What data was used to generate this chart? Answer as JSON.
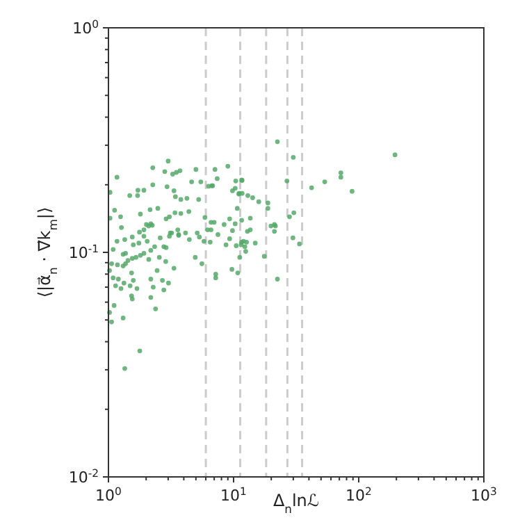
{
  "chart_data": {
    "type": "scatter",
    "xlabel": "Δ$_{n}$lnℒ",
    "ylabel": "⟨|α⃗$_{n}$ · ∇⃗k$_{m}$|⟩",
    "log": "xy",
    "marker": "circle",
    "grid": false,
    "xlim": [
      1,
      1000
    ],
    "ylim": [
      0.01,
      1
    ],
    "xticks": [
      {
        "value": 1,
        "label": "10$^{0}$"
      },
      {
        "value": 2,
        "label": null
      },
      {
        "value": 3,
        "label": null
      },
      {
        "value": 4,
        "label": null
      },
      {
        "value": 5,
        "label": null
      },
      {
        "value": 6,
        "label": null
      },
      {
        "value": 7,
        "label": null
      },
      {
        "value": 8,
        "label": null
      },
      {
        "value": 9,
        "label": null
      },
      {
        "value": 10,
        "label": "10$^{1}$"
      },
      {
        "value": 20,
        "label": null
      },
      {
        "value": 30,
        "label": null
      },
      {
        "value": 40,
        "label": null
      },
      {
        "value": 50,
        "label": null
      },
      {
        "value": 60,
        "label": null
      },
      {
        "value": 70,
        "label": null
      },
      {
        "value": 80,
        "label": null
      },
      {
        "value": 90,
        "label": null
      },
      {
        "value": 100,
        "label": "10$^{2}$"
      },
      {
        "value": 200,
        "label": null
      },
      {
        "value": 300,
        "label": null
      },
      {
        "value": 400,
        "label": null
      },
      {
        "value": 500,
        "label": null
      },
      {
        "value": 600,
        "label": null
      },
      {
        "value": 700,
        "label": null
      },
      {
        "value": 800,
        "label": null
      },
      {
        "value": 900,
        "label": null
      },
      {
        "value": 1000,
        "label": "10$^{3}$"
      }
    ],
    "yticks": [
      {
        "value": 0.01,
        "label": "10$^{-2}$"
      },
      {
        "value": 0.02,
        "label": null
      },
      {
        "value": 0.03,
        "label": null
      },
      {
        "value": 0.04,
        "label": null
      },
      {
        "value": 0.05,
        "label": null
      },
      {
        "value": 0.06,
        "label": null
      },
      {
        "value": 0.07,
        "label": null
      },
      {
        "value": 0.08,
        "label": null
      },
      {
        "value": 0.09,
        "label": null
      },
      {
        "value": 0.1,
        "label": "10$^{-1}$"
      },
      {
        "value": 0.2,
        "label": null
      },
      {
        "value": 0.3,
        "label": null
      },
      {
        "value": 0.4,
        "label": null
      },
      {
        "value": 0.5,
        "label": null
      },
      {
        "value": 0.6,
        "label": null
      },
      {
        "value": 0.7,
        "label": null
      },
      {
        "value": 0.8,
        "label": null
      },
      {
        "value": 0.9,
        "label": null
      },
      {
        "value": 1,
        "label": "10$^{0}$"
      }
    ],
    "ref_lines": [
      {
        "axis": "x",
        "value": 6,
        "color": "#cccccc",
        "line_style": "dashed"
      },
      {
        "axis": "x",
        "value": 11.3,
        "color": "#cccccc",
        "line_style": "dashed"
      },
      {
        "axis": "x",
        "value": 18.2,
        "color": "#cccccc",
        "line_style": "dashed"
      },
      {
        "axis": "x",
        "value": 26.9,
        "color": "#cccccc",
        "line_style": "dashed"
      },
      {
        "axis": "x",
        "value": 35.3,
        "color": "#cccccc",
        "line_style": "dashed"
      }
    ],
    "series": [
      {
        "color": "#55a868",
        "x": [
          3.0,
          1.17,
          2.26,
          2.82,
          3.26,
          3.49,
          3.73,
          5.0,
          7.1,
          9.0,
          1.03,
          1.48,
          1.71,
          1.92,
          2.26,
          1.72,
          2.94,
          3.34,
          3.43,
          3.79,
          4.24,
          4.62,
          5.26,
          5.47,
          6.3,
          6.7,
          6.8,
          7.4,
          9.8,
          10.3,
          11.6,
          11.0,
          1.12,
          1.03,
          1.25,
          1.27,
          1.8,
          2.15,
          2.48,
          2.18,
          2.01,
          2.1,
          2.24,
          1.92,
          1.77,
          2.89,
          3.07,
          3.4,
          3.79,
          4.39,
          3.58,
          3.2,
          3.64,
          4.13,
          5.9,
          6.2,
          6.6,
          7.0,
          8.4,
          9.3,
          10.3,
          9.8,
          11.6,
          1.09,
          1.17,
          1.35,
          1.55,
          1.58,
          1.37,
          1.31,
          1.18,
          1.75,
          1.92,
          2.04,
          2.18,
          2.34,
          2.59,
          2.77,
          2.89,
          3.07,
          3.64,
          3.12,
          4.43,
          5.33,
          5.8,
          5.12,
          6.6,
          6.5,
          7.5,
          8.7,
          9.3,
          10.5,
          11.6,
          1.06,
          1.02,
          1.09,
          1.2,
          1.14,
          1.37,
          1.43,
          1.55,
          1.66,
          1.8,
          1.92,
          1.31,
          2.1,
          2.55,
          2.87,
          3.34,
          2.45,
          2.18,
          2.7,
          3.02,
          2.28,
          1.53,
          1.58,
          1.33,
          1.49,
          1.26,
          1.69,
          1.53,
          1.55,
          4.94,
          5.58,
          7.2,
          7.2,
          9.7,
          10.8,
          1.11,
          1.02,
          1.06,
          1.31,
          2.18,
          2.38,
          2.77,
          22.4,
          30,
          72,
          72,
          53.5,
          42,
          88.5,
          10.4,
          11.7,
          26.7,
          11.1,
          11.7,
          13,
          14.2,
          15.9,
          18.8,
          18.8,
          10.7,
          30.3,
          28.0,
          13.6,
          13.6,
          12.9,
          19.9,
          21.2,
          21.6,
          21.2,
          14.9,
          12.0,
          12.7,
          11.5,
          12.3,
          12.5,
          29.8,
          33.6,
          17.6,
          11.2,
          22.4,
          195,
          1.35,
          1.78
        ],
        "values": [
          0.255,
          0.216,
          0.238,
          0.229,
          0.223,
          0.227,
          0.231,
          0.234,
          0.234,
          0.242,
          0.185,
          0.179,
          0.179,
          0.189,
          0.2,
          0.189,
          0.196,
          0.188,
          0.177,
          0.172,
          0.174,
          0.206,
          0.172,
          0.206,
          0.197,
          0.198,
          0.198,
          0.213,
          0.188,
          0.193,
          0.21,
          0.182,
          0.154,
          0.142,
          0.144,
          0.129,
          0.148,
          0.155,
          0.157,
          0.134,
          0.133,
          0.131,
          0.132,
          0.126,
          0.123,
          0.141,
          0.144,
          0.15,
          0.149,
          0.152,
          0.126,
          0.122,
          0.12,
          0.122,
          0.143,
          0.126,
          0.136,
          0.136,
          0.133,
          0.141,
          0.134,
          0.125,
          0.139,
          0.103,
          0.112,
          0.114,
          0.117,
          0.108,
          0.099,
          0.098,
          0.088,
          0.11,
          0.118,
          0.112,
          0.102,
          0.106,
          0.116,
          0.106,
          0.105,
          0.118,
          0.119,
          0.122,
          0.114,
          0.117,
          0.112,
          0.122,
          0.126,
          0.111,
          0.12,
          0.108,
          0.115,
          0.107,
          0.111,
          0.089,
          0.083,
          0.077,
          0.076,
          0.071,
          0.089,
          0.092,
          0.094,
          0.095,
          0.097,
          0.099,
          0.087,
          0.093,
          0.095,
          0.091,
          0.085,
          0.083,
          0.076,
          0.075,
          0.073,
          0.07,
          0.081,
          0.075,
          0.073,
          0.071,
          0.069,
          0.069,
          0.064,
          0.062,
          0.095,
          0.089,
          0.08,
          0.077,
          0.084,
          0.081,
          0.058,
          0.054,
          0.049,
          0.051,
          0.063,
          0.056,
          0.068,
          0.311,
          0.265,
          0.226,
          0.216,
          0.206,
          0.194,
          0.187,
          0.208,
          0.209,
          0.208,
          0.183,
          0.183,
          0.179,
          0.175,
          0.168,
          0.166,
          0.157,
          0.157,
          0.15,
          0.144,
          0.142,
          0.126,
          0.124,
          0.131,
          0.133,
          0.131,
          0.124,
          0.11,
          0.112,
          0.111,
          0.108,
          0.106,
          0.101,
          0.116,
          0.109,
          0.096,
          0.095,
          0.076,
          0.272,
          0.0304,
          0.0364
        ]
      }
    ]
  }
}
